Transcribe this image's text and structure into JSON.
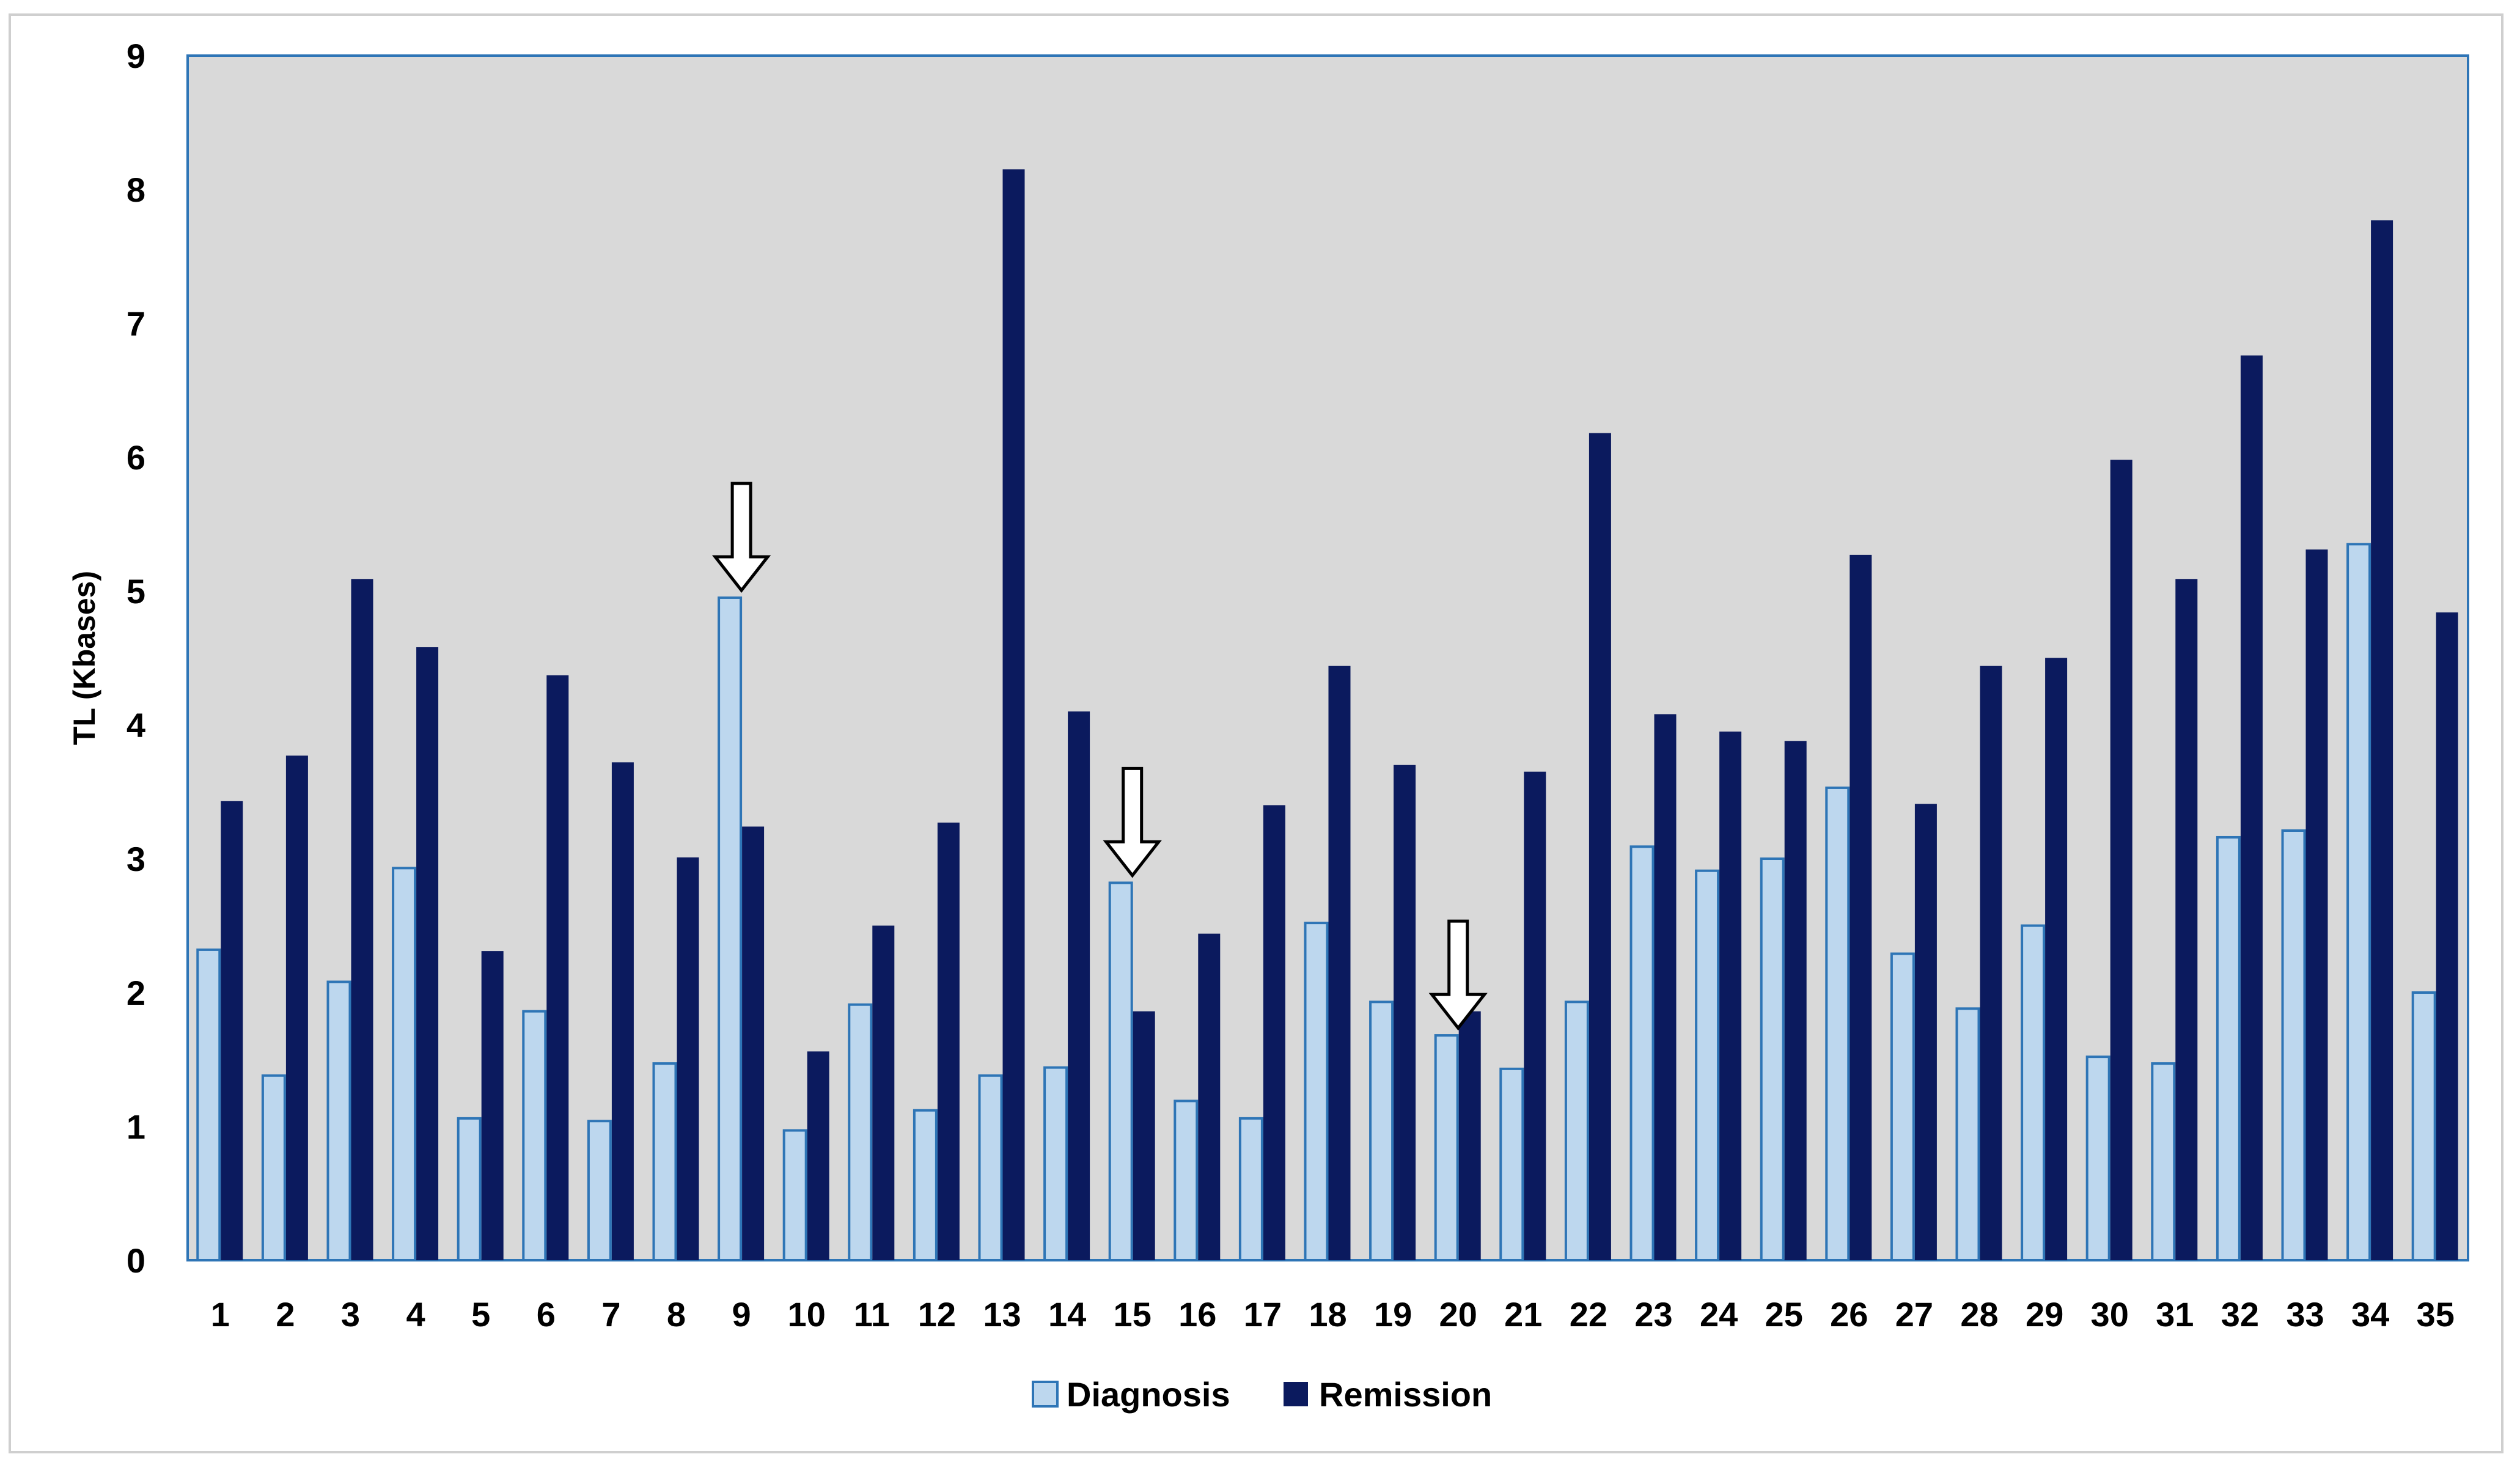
{
  "chart_data": {
    "type": "bar",
    "ylabel": "TL (Kbases)",
    "xlabel": "",
    "ylim": [
      0,
      9
    ],
    "yticks": [
      0,
      1,
      2,
      3,
      4,
      5,
      6,
      7,
      8,
      9
    ],
    "grid": false,
    "legend_position": "bottom",
    "categories": [
      "1",
      "2",
      "3",
      "4",
      "5",
      "6",
      "7",
      "8",
      "9",
      "10",
      "11",
      "12",
      "13",
      "14",
      "15",
      "16",
      "17",
      "18",
      "19",
      "20",
      "21",
      "22",
      "23",
      "24",
      "25",
      "26",
      "27",
      "28",
      "29",
      "30",
      "31",
      "32",
      "33",
      "34",
      "35"
    ],
    "series": [
      {
        "name": "Diagnosis",
        "color": "#bdd7ee",
        "edge_color": "#2e75b6",
        "values": [
          2.32,
          1.38,
          2.08,
          2.93,
          1.06,
          1.86,
          1.04,
          1.47,
          4.95,
          0.97,
          1.91,
          1.12,
          1.38,
          1.44,
          2.82,
          1.19,
          1.06,
          2.52,
          1.93,
          1.68,
          1.43,
          1.93,
          3.09,
          2.91,
          3.0,
          3.53,
          2.29,
          1.88,
          2.5,
          1.52,
          1.47,
          3.16,
          3.21,
          5.35,
          2.0
        ]
      },
      {
        "name": "Remission",
        "color": "#0b1a5e",
        "values": [
          3.43,
          3.77,
          5.09,
          4.58,
          2.31,
          4.37,
          3.72,
          3.01,
          3.24,
          1.56,
          2.5,
          3.27,
          8.15,
          4.1,
          1.86,
          2.44,
          3.4,
          4.44,
          3.7,
          1.86,
          3.65,
          6.18,
          4.08,
          3.95,
          3.88,
          5.27,
          3.41,
          4.44,
          4.5,
          5.98,
          5.09,
          6.76,
          5.31,
          7.77,
          4.84
        ]
      }
    ],
    "annotations": [
      {
        "type": "arrow",
        "category": "9"
      },
      {
        "type": "arrow",
        "category": "15"
      },
      {
        "type": "arrow",
        "category": "20"
      }
    ],
    "colors": {
      "plot_background": "#d9d9d9",
      "plot_border": "#2e75b6",
      "arrow_fill": "#ffffff",
      "arrow_stroke": "#000000"
    }
  }
}
